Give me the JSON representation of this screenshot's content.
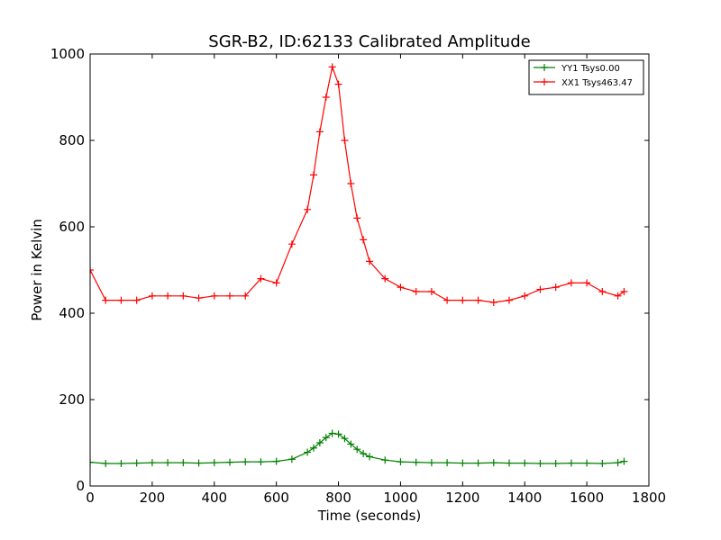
{
  "chart_data": {
    "type": "line",
    "title": "SGR-B2, ID:62133 Calibrated Amplitude",
    "xlabel": "Time (seconds)",
    "ylabel": "Power in Kelvin",
    "xlim": [
      0,
      1800
    ],
    "ylim": [
      0,
      1000
    ],
    "xticks": [
      0,
      200,
      400,
      600,
      800,
      1000,
      1200,
      1400,
      1600,
      1800
    ],
    "yticks": [
      0,
      200,
      400,
      600,
      800,
      1000
    ],
    "grid": false,
    "legend_position": "top-right",
    "marker": "+",
    "series": [
      {
        "name": "YY1 Tsys0.00",
        "color": "#008000",
        "x": [
          0,
          50,
          100,
          150,
          200,
          250,
          300,
          350,
          400,
          450,
          500,
          550,
          600,
          650,
          700,
          720,
          740,
          760,
          780,
          800,
          820,
          840,
          860,
          880,
          900,
          950,
          1000,
          1050,
          1100,
          1150,
          1200,
          1250,
          1300,
          1350,
          1400,
          1450,
          1500,
          1550,
          1600,
          1650,
          1700,
          1720
        ],
        "y": [
          55,
          52,
          52,
          53,
          54,
          54,
          54,
          53,
          54,
          55,
          56,
          56,
          57,
          62,
          78,
          88,
          100,
          112,
          122,
          120,
          110,
          97,
          85,
          75,
          68,
          60,
          56,
          55,
          54,
          54,
          53,
          53,
          54,
          53,
          53,
          52,
          52,
          53,
          53,
          52,
          54,
          57
        ]
      },
      {
        "name": "XX1 Tsys463.47",
        "color": "#ff0000",
        "x": [
          0,
          50,
          100,
          150,
          200,
          250,
          300,
          350,
          400,
          450,
          500,
          550,
          600,
          650,
          700,
          720,
          740,
          760,
          780,
          800,
          820,
          840,
          860,
          880,
          900,
          950,
          1000,
          1050,
          1100,
          1150,
          1200,
          1250,
          1300,
          1350,
          1400,
          1450,
          1500,
          1550,
          1600,
          1650,
          1700,
          1720
        ],
        "y": [
          500,
          430,
          430,
          430,
          440,
          440,
          440,
          435,
          440,
          440,
          440,
          480,
          470,
          560,
          640,
          720,
          820,
          900,
          970,
          930,
          800,
          700,
          620,
          570,
          520,
          480,
          460,
          450,
          450,
          430,
          430,
          430,
          425,
          430,
          440,
          455,
          460,
          470,
          470,
          450,
          440,
          450
        ]
      }
    ]
  }
}
